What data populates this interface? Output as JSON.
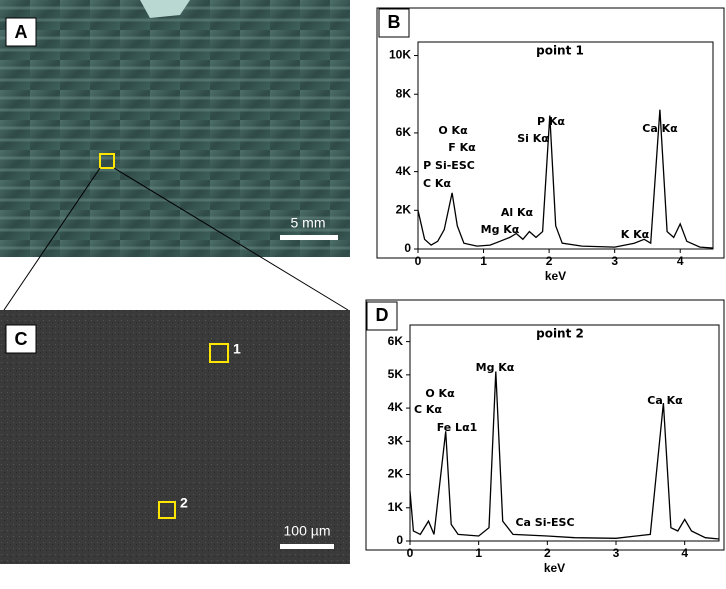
{
  "panels": {
    "a": {
      "label": "A",
      "scale": "5 mm"
    },
    "c": {
      "label": "C",
      "scale": "100 µm",
      "points": [
        "1",
        "2"
      ]
    }
  },
  "chart_data": [
    {
      "type": "line",
      "panel_label": "B",
      "title": "point 1",
      "x_label": "keV",
      "color": "#000000",
      "x": [
        0,
        0.1,
        0.2,
        0.3,
        0.4,
        0.52,
        0.6,
        0.7,
        0.9,
        1.1,
        1.25,
        1.4,
        1.5,
        1.6,
        1.7,
        1.8,
        1.9,
        2.01,
        2.1,
        2.2,
        2.5,
        3.0,
        3.3,
        3.45,
        3.55,
        3.69,
        3.8,
        3.9,
        4.0,
        4.1,
        4.3,
        4.5
      ],
      "values": [
        2000,
        500,
        200,
        400,
        1000,
        2900,
        1200,
        300,
        150,
        200,
        400,
        600,
        800,
        500,
        900,
        600,
        900,
        6900,
        1200,
        300,
        150,
        100,
        300,
        500,
        300,
        7200,
        900,
        600,
        1300,
        400,
        100,
        50
      ],
      "xlim": [
        0,
        4.5
      ],
      "xticks": [
        0,
        1,
        2,
        3,
        4
      ],
      "ylim": [
        0,
        10700
      ],
      "yticks": [
        0,
        {
          "value": 2000,
          "label": "2K"
        },
        {
          "value": 4000,
          "label": "4K"
        },
        {
          "value": 6000,
          "label": "6K"
        },
        {
          "value": 8000,
          "label": "8K"
        },
        {
          "value": 10000,
          "label": "10K"
        }
      ],
      "annotations": [
        "P Kα",
        "Si Kα",
        "Ca Kα",
        "O Kα",
        "F Kα",
        "P Si-ESC",
        "C Kα",
        "Al Kα",
        "Mg Kα",
        "K Kα"
      ]
    },
    {
      "type": "line",
      "panel_label": "D",
      "title": "point 2",
      "x_label": "keV",
      "color": "#000000",
      "x": [
        0,
        0.05,
        0.15,
        0.27,
        0.35,
        0.52,
        0.6,
        0.7,
        1.0,
        1.15,
        1.25,
        1.35,
        1.5,
        2.0,
        2.4,
        3.0,
        3.5,
        3.69,
        3.8,
        3.9,
        4.0,
        4.1,
        4.3,
        4.5
      ],
      "values": [
        1500,
        300,
        200,
        600,
        200,
        3300,
        500,
        200,
        150,
        400,
        5100,
        600,
        200,
        150,
        100,
        80,
        200,
        4150,
        400,
        300,
        650,
        300,
        100,
        60
      ],
      "xlim": [
        0,
        4.5
      ],
      "xticks": [
        0,
        1,
        2,
        3,
        4
      ],
      "ylim": [
        0,
        6500
      ],
      "yticks": [
        0,
        {
          "value": 1000,
          "label": "1K"
        },
        {
          "value": 2000,
          "label": "2K"
        },
        {
          "value": 3000,
          "label": "3K"
        },
        {
          "value": 4000,
          "label": "4K"
        },
        {
          "value": 5000,
          "label": "5K"
        },
        {
          "value": 6000,
          "label": "6K"
        }
      ],
      "annotations": [
        "Mg Kα",
        "O Kα",
        "C Kα",
        "Fe Lα1",
        "Ca Kα",
        "Ca Si-ESC"
      ]
    }
  ]
}
